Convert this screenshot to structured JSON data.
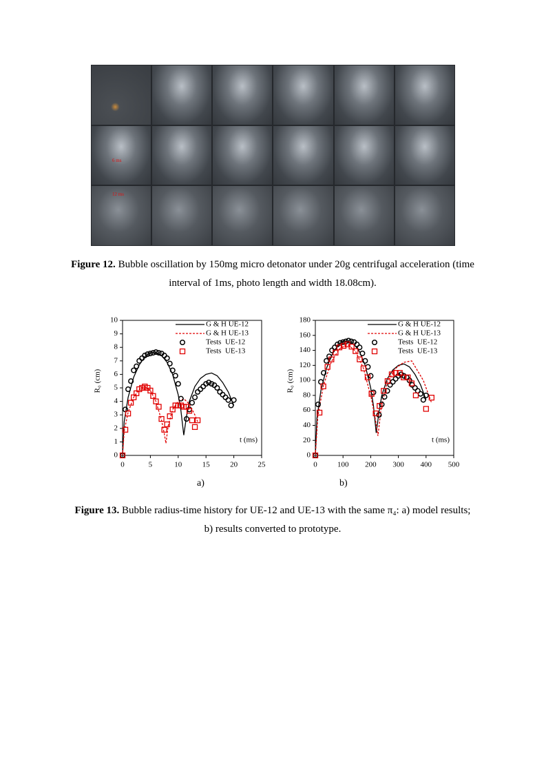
{
  "figure12": {
    "photo_labels": [
      "6 ms",
      "12 ms"
    ],
    "caption_label": "Figure 12.",
    "caption_text": "Bubble oscillation by 150mg micro detonator under 20g centrifugal acceleration (time interval of 1ms, photo length and width 18.08cm)."
  },
  "figure13": {
    "panels": [
      "a)",
      "b)"
    ],
    "caption_label": "Figure 13.",
    "caption_text": "Bubble radius-time history for UE-12 and UE-13 with the same π₄: a) model results; b) results converted to prototype."
  },
  "chart_data": [
    {
      "type": "line-scatter",
      "y_label": "R₀ (cm)",
      "x_label": "t (ms)",
      "xlim": [
        0,
        25
      ],
      "ylim": [
        0,
        10
      ],
      "xticks": [
        0,
        5,
        10,
        15,
        20,
        25
      ],
      "yticks": [
        0,
        1,
        2,
        3,
        4,
        5,
        6,
        7,
        8,
        9,
        10
      ],
      "series": [
        {
          "name": "G & H UE-12",
          "color": "#000000",
          "style": "solid",
          "x": [
            0,
            0.3,
            1,
            2,
            3,
            4,
            5,
            6,
            7,
            8,
            9,
            10,
            10.5,
            11,
            11.5,
            12,
            13,
            14,
            15,
            16,
            17,
            18,
            19,
            20
          ],
          "values": [
            0,
            2.5,
            4.3,
            5.8,
            6.7,
            7.3,
            7.6,
            7.6,
            7.4,
            6.9,
            6.0,
            4.5,
            3.3,
            1.5,
            2.9,
            4.0,
            5.1,
            5.7,
            6.0,
            6.1,
            5.9,
            5.4,
            4.7,
            3.7
          ]
        },
        {
          "name": "G & H UE-13",
          "color": "#e00000",
          "style": "dashed",
          "x": [
            0,
            0.3,
            1,
            2,
            3,
            4,
            5,
            6,
            7,
            7.5,
            7.8,
            8.2,
            9,
            10,
            11,
            12,
            13,
            13.5
          ],
          "values": [
            0,
            1.8,
            3.2,
            4.3,
            4.9,
            5.1,
            4.8,
            4.0,
            2.6,
            1.6,
            0.9,
            2.2,
            3.4,
            4.0,
            4.2,
            3.8,
            3.0,
            2.5
          ]
        },
        {
          "name": "Tests  UE-12",
          "color": "#000000",
          "style": "circle",
          "x": [
            0,
            0.5,
            1,
            1.5,
            2,
            2.5,
            3,
            3.5,
            4,
            4.5,
            5,
            5.5,
            6,
            6.5,
            7,
            7.5,
            8,
            8.5,
            9,
            9.5,
            10,
            10.5,
            11.5,
            12,
            12.5,
            13,
            13.5,
            14,
            14.5,
            15,
            15.5,
            16,
            16.5,
            17,
            17.5,
            18,
            18.5,
            19,
            19.5,
            20
          ],
          "values": [
            0,
            3.4,
            4.9,
            5.5,
            6.3,
            6.6,
            7.0,
            7.2,
            7.4,
            7.5,
            7.55,
            7.6,
            7.65,
            7.6,
            7.55,
            7.4,
            7.2,
            6.8,
            6.3,
            5.9,
            5.3,
            4.2,
            2.7,
            3.4,
            3.9,
            4.3,
            4.7,
            4.9,
            5.1,
            5.3,
            5.4,
            5.3,
            5.2,
            5.0,
            4.7,
            4.5,
            4.3,
            4.1,
            3.7,
            4.1
          ]
        },
        {
          "name": "Tests  UE-13",
          "color": "#e00000",
          "style": "square",
          "x": [
            0,
            0.5,
            1,
            1.5,
            2,
            2.5,
            3,
            3.5,
            4,
            4.5,
            5,
            5.5,
            6,
            6.5,
            7,
            7.5,
            8,
            8.5,
            9,
            9.5,
            10,
            10.5,
            11,
            11.5,
            12,
            12.5,
            13,
            13.5
          ],
          "values": [
            0,
            1.9,
            3.1,
            3.9,
            4.3,
            4.6,
            4.9,
            5.0,
            5.1,
            5.0,
            4.8,
            4.4,
            4.0,
            3.6,
            2.7,
            1.9,
            2.3,
            2.9,
            3.4,
            3.7,
            3.7,
            3.7,
            3.6,
            3.6,
            3.3,
            2.6,
            2.1,
            2.6
          ]
        }
      ]
    },
    {
      "type": "line-scatter",
      "y_label": "R₀ (cm)",
      "x_label": "t (ms)",
      "xlim": [
        0,
        500
      ],
      "ylim": [
        0,
        180
      ],
      "xticks": [
        0,
        100,
        200,
        300,
        400,
        500
      ],
      "yticks": [
        0,
        20,
        40,
        60,
        80,
        100,
        120,
        140,
        160,
        180
      ],
      "series": [
        {
          "name": "G & H UE-12",
          "color": "#000000",
          "style": "solid",
          "x": [
            0,
            6,
            20,
            40,
            60,
            80,
            100,
            120,
            140,
            160,
            180,
            200,
            210,
            220,
            230,
            240,
            260,
            280,
            300,
            320,
            340,
            360,
            380,
            400
          ],
          "values": [
            0,
            50,
            86,
            116,
            134,
            146,
            152,
            152,
            148,
            138,
            120,
            90,
            66,
            30,
            58,
            80,
            102,
            114,
            120,
            122,
            118,
            108,
            94,
            74
          ]
        },
        {
          "name": "G & H UE-13",
          "color": "#e00000",
          "style": "dashed",
          "x": [
            0,
            9,
            29,
            58,
            87,
            116,
            145,
            174,
            203,
            218,
            226,
            238,
            261,
            290,
            319,
            348,
            390,
            420
          ],
          "values": [
            0,
            52,
            93,
            125,
            142,
            148,
            139,
            116,
            75,
            46,
            26,
            64,
            99,
            116,
            124,
            126,
            100,
            70
          ]
        },
        {
          "name": "Tests  UE-12",
          "color": "#000000",
          "style": "circle",
          "x": [
            0,
            10,
            20,
            30,
            40,
            50,
            60,
            70,
            80,
            90,
            100,
            110,
            120,
            130,
            140,
            150,
            160,
            170,
            180,
            190,
            200,
            210,
            230,
            240,
            250,
            260,
            270,
            280,
            290,
            300,
            310,
            320,
            330,
            340,
            350,
            360,
            370,
            380,
            390,
            400
          ],
          "values": [
            0,
            68,
            98,
            110,
            126,
            132,
            140,
            144,
            148,
            150,
            151,
            152,
            153,
            152,
            151,
            148,
            144,
            136,
            126,
            118,
            106,
            84,
            54,
            68,
            78,
            86,
            94,
            98,
            102,
            106,
            108,
            106,
            104,
            100,
            94,
            90,
            86,
            82,
            74,
            80
          ]
        },
        {
          "name": "Tests  UE-13",
          "color": "#e00000",
          "style": "square",
          "x": [
            0,
            15,
            29,
            44,
            58,
            73,
            87,
            102,
            116,
            131,
            145,
            160,
            174,
            189,
            203,
            218,
            232,
            247,
            261,
            276,
            290,
            305,
            319,
            334,
            348,
            363,
            400,
            420
          ],
          "values": [
            0,
            57,
            92,
            118,
            128,
            137,
            144,
            146,
            148,
            145,
            139,
            128,
            116,
            104,
            82,
            56,
            66,
            86,
            99,
            108,
            110,
            110,
            104,
            104,
            96,
            80,
            62,
            77
          ]
        }
      ]
    }
  ]
}
